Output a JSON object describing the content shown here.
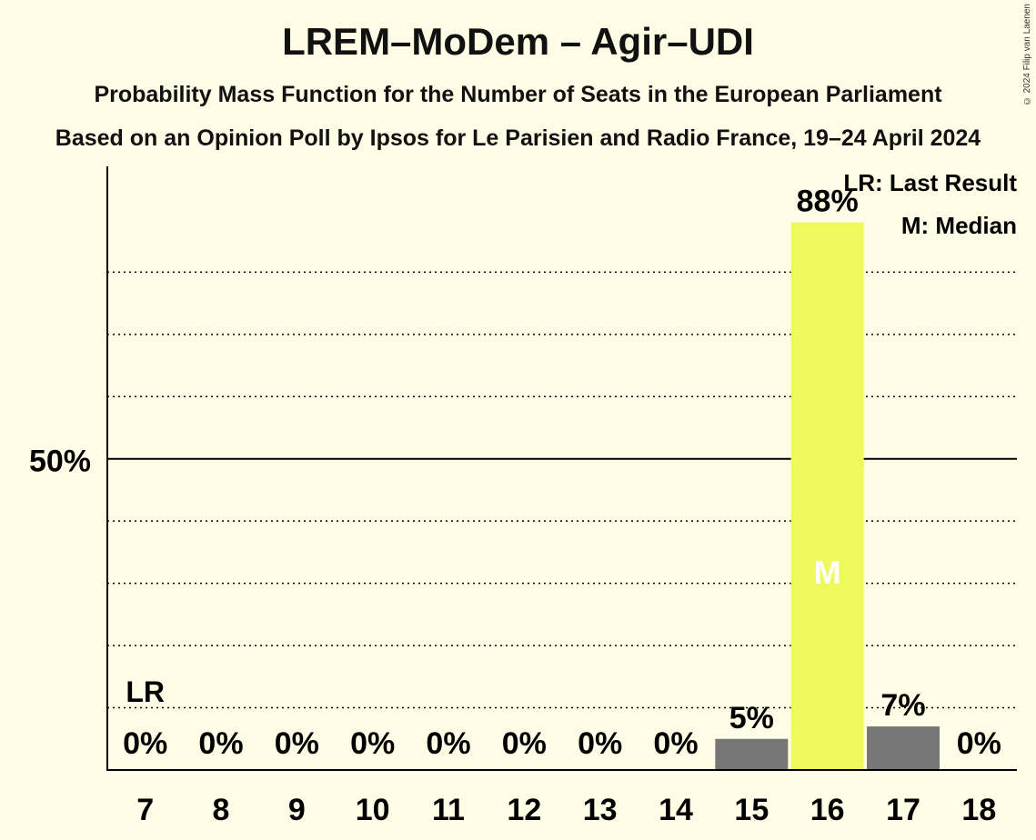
{
  "chart_data": {
    "type": "bar",
    "title": "LREM–MoDem – Agir–UDI",
    "subtitle_lines": [
      "Probability Mass Function for the Number of Seats in the European Parliament",
      "Based on an Opinion Poll by Ipsos for Le Parisien and Radio France, 19–24 April 2024"
    ],
    "categories": [
      "7",
      "8",
      "9",
      "10",
      "11",
      "12",
      "13",
      "14",
      "15",
      "16",
      "17",
      "18"
    ],
    "values": [
      0,
      0,
      0,
      0,
      0,
      0,
      0,
      0,
      5,
      88,
      7,
      0
    ],
    "value_labels": [
      "0%",
      "0%",
      "0%",
      "0%",
      "0%",
      "0%",
      "0%",
      "0%",
      "5%",
      "88%",
      "7%",
      "0%"
    ],
    "ylim": [
      0,
      97
    ],
    "y_tick_label": "50%",
    "y_tick_value": 50,
    "grid_step": 10,
    "grid_max": 80,
    "legend": [
      "LR: Last Result",
      "M: Median"
    ],
    "legend_position": "top-right",
    "last_result_seat": "7",
    "last_result_marker": "LR",
    "median_seat": "16",
    "median_marker": "M",
    "colors": {
      "background": "#FFFDE6",
      "median_bar": "#EEF95E",
      "other_bar": "#777777",
      "axis": "#000000"
    }
  },
  "copyright": "© 2024 Filip van Laenen"
}
